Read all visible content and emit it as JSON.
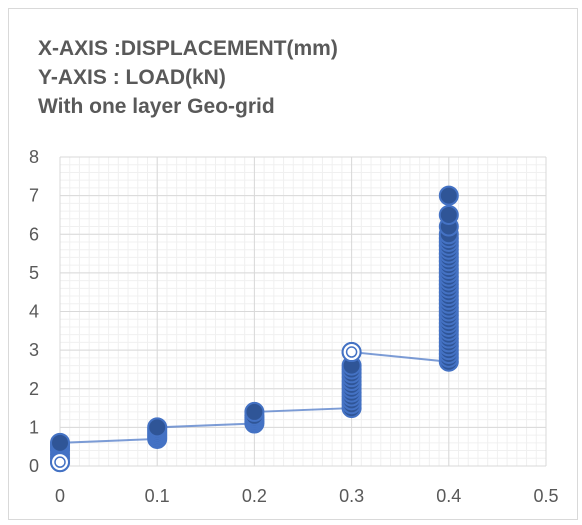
{
  "chart_data": {
    "type": "scatter",
    "title_lines": [
      "X-AXIS :DISPLACEMENT(mm)",
      "Y-AXIS : LOAD(kN)",
      "With one layer  Geo-grid"
    ],
    "xlim": [
      0,
      0.5
    ],
    "ylim": [
      0,
      8
    ],
    "x_ticks": [
      "0",
      "0.1",
      "0.2",
      "0.3",
      "0.4",
      "0.5"
    ],
    "y_ticks": [
      "0",
      "1",
      "2",
      "3",
      "4",
      "5",
      "6",
      "7",
      "8"
    ],
    "grid": true,
    "minor_grid": true,
    "legend": "none",
    "marker_color": "#4472c4",
    "marker_fill": "#2f5597",
    "line_color": "#4472c4",
    "series": [
      {
        "x": [
          0,
          0,
          0,
          0,
          0,
          0,
          0,
          0,
          0.1,
          0.1,
          0.1,
          0.1,
          0.1,
          0.1,
          0.1,
          0.2,
          0.2,
          0.2,
          0.2,
          0.2,
          0.2,
          0.3,
          0.3,
          0.3,
          0.3,
          0.3,
          0.3,
          0.3,
          0.3,
          0.3,
          0.3,
          0.3,
          0.3,
          0.3,
          0.4,
          0.4,
          0.4,
          0.4,
          0.4,
          0.4,
          0.4,
          0.4,
          0.4,
          0.4,
          0.4,
          0.4,
          0.4,
          0.4,
          0.4,
          0.4,
          0.4,
          0.4,
          0.4,
          0.4,
          0.4,
          0.4,
          0.4,
          0.4,
          0.4,
          0.4,
          0.4,
          0.4,
          0.4,
          0.4,
          0.4,
          0.4,
          0.4,
          0.4,
          0.4,
          0.4,
          0.4
        ],
        "y": [
          0.1,
          0.2,
          0.3,
          0.4,
          0.45,
          0.5,
          0.55,
          0.6,
          0.7,
          0.75,
          0.8,
          0.85,
          0.9,
          0.95,
          1.0,
          1.1,
          1.15,
          1.2,
          1.25,
          1.3,
          1.4,
          1.5,
          1.6,
          1.7,
          1.8,
          1.9,
          2.0,
          2.1,
          2.2,
          2.3,
          2.4,
          2.5,
          2.6,
          2.95,
          2.7,
          2.8,
          2.9,
          3.0,
          3.1,
          3.2,
          3.3,
          3.4,
          3.5,
          3.6,
          3.7,
          3.8,
          3.9,
          4.0,
          4.1,
          4.2,
          4.3,
          4.4,
          4.5,
          4.6,
          4.7,
          4.8,
          4.9,
          5.0,
          5.1,
          5.2,
          5.3,
          5.4,
          5.5,
          5.6,
          5.7,
          5.8,
          5.9,
          6.0,
          6.2,
          6.5,
          7.0
        ]
      }
    ]
  }
}
